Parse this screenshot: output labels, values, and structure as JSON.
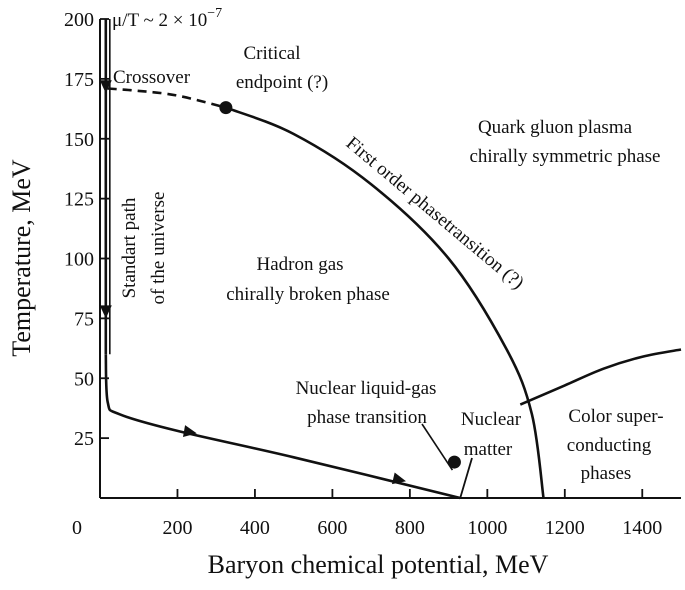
{
  "chart_data": {
    "type": "diagram",
    "xlabel": "Baryon chemical potential, MeV",
    "ylabel": "Temperature, MeV",
    "xlim": [
      0,
      1500
    ],
    "ylim": [
      0,
      200
    ],
    "x_ticks": [
      "0",
      "200",
      "400",
      "600",
      "800",
      "1000",
      "1200",
      "1400"
    ],
    "y_ticks": [
      "25",
      "50",
      "75",
      "100",
      "125",
      "150",
      "175",
      "200"
    ],
    "annotations": {
      "ratio_prefix": "μ/T ~ 2 × 10",
      "ratio_exponent": "−7",
      "crossover": "Crossover",
      "critical_line1": "Critical",
      "critical_line2": "endpoint (?)",
      "qgp_line1": "Quark gluon plasma",
      "qgp_line2": "chirally symmetric phase",
      "first_order": "First order phasetransition (?)",
      "hadron_line1": "Hadron gas",
      "hadron_line2": "chirally broken phase",
      "path_line1": "Standart path",
      "path_line2": "of the universe",
      "liquid_line1": "Nuclear liquid-gas",
      "liquid_line2": "phase transition",
      "nuclear_line1": "Nuclear",
      "nuclear_line2": "matter",
      "color_line1": "Color super-",
      "color_line2": "conducting",
      "color_line3": "phases"
    },
    "critical_endpoint": {
      "x": 325,
      "y": 163
    },
    "liquid_gas_point": {
      "x": 915,
      "y": 15
    },
    "nuclear_matter_point": {
      "x": 930,
      "y": 0
    },
    "crossover_line": [
      [
        20,
        171
      ],
      [
        100,
        170
      ],
      [
        200,
        168
      ],
      [
        325,
        163
      ]
    ],
    "first_order_line": [
      [
        325,
        163
      ],
      [
        500,
        152
      ],
      [
        700,
        131
      ],
      [
        900,
        100
      ],
      [
        1050,
        62
      ],
      [
        1115,
        35
      ],
      [
        1145,
        0
      ]
    ],
    "color_boundary": [
      [
        1085,
        39
      ],
      [
        1200,
        47
      ],
      [
        1300,
        54
      ],
      [
        1400,
        59
      ],
      [
        1500,
        62
      ]
    ],
    "universe_path": [
      [
        15,
        200
      ],
      [
        15,
        60
      ],
      [
        20,
        40
      ],
      [
        50,
        35
      ],
      [
        200,
        28
      ],
      [
        500,
        17
      ],
      [
        930,
        0
      ]
    ]
  }
}
